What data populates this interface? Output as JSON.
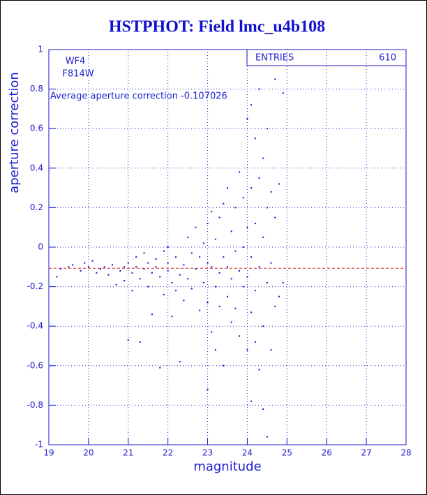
{
  "chart_data": {
    "type": "scatter",
    "title": "HSTPHOT: Field lmc_u4b108",
    "x_label": "magnitude",
    "y_label": "aperture correction",
    "annotations": [
      "WF4",
      "F814W"
    ],
    "average_label": "Average aperture correction -0.107026",
    "average": -0.107026,
    "average_color": "#e02020",
    "stats": {
      "label": "ENTRIES",
      "value": 610
    },
    "xlim": [
      19,
      28
    ],
    "xticks": [
      19,
      20,
      21,
      22,
      23,
      24,
      25,
      26,
      27,
      28
    ],
    "ylim": [
      -1,
      1
    ],
    "yticks": [
      -1,
      -0.8,
      -0.6,
      -0.4,
      -0.2,
      0,
      0.2,
      0.4,
      0.6,
      0.8,
      1
    ],
    "grid": true,
    "color": "#1010d0",
    "x": [
      19.2,
      19.3,
      19.5,
      19.6,
      19.8,
      19.9,
      20.0,
      20.1,
      20.2,
      20.3,
      20.4,
      20.5,
      20.6,
      20.7,
      20.8,
      20.9,
      20.9,
      21.0,
      21.0,
      21.1,
      21.1,
      21.2,
      21.2,
      21.3,
      21.3,
      21.4,
      21.4,
      21.5,
      21.5,
      21.6,
      21.6,
      21.7,
      21.7,
      21.8,
      21.8,
      21.9,
      21.9,
      22.0,
      22.0,
      22.0,
      22.1,
      22.1,
      22.2,
      22.2,
      22.3,
      22.3,
      22.4,
      22.4,
      22.5,
      22.5,
      22.6,
      22.6,
      22.7,
      22.7,
      22.8,
      22.8,
      22.9,
      22.9,
      23.0,
      23.0,
      23.0,
      23.0,
      23.1,
      23.1,
      23.1,
      23.2,
      23.2,
      23.2,
      23.3,
      23.3,
      23.3,
      23.4,
      23.4,
      23.4,
      23.5,
      23.5,
      23.5,
      23.6,
      23.6,
      23.6,
      23.7,
      23.7,
      23.7,
      23.8,
      23.8,
      23.8,
      23.9,
      23.9,
      23.9,
      24.0,
      24.0,
      24.0,
      24.0,
      24.1,
      24.1,
      24.1,
      24.1,
      24.1,
      24.2,
      24.2,
      24.2,
      24.2,
      24.3,
      24.3,
      24.3,
      24.3,
      24.4,
      24.4,
      24.4,
      24.4,
      24.5,
      24.5,
      24.5,
      24.5,
      24.6,
      24.6,
      24.6,
      24.7,
      24.7,
      24.7,
      24.8,
      24.8,
      24.9,
      24.9
    ],
    "values": [
      -0.15,
      -0.11,
      -0.1,
      -0.09,
      -0.12,
      -0.08,
      -0.1,
      -0.07,
      -0.13,
      -0.11,
      -0.1,
      -0.14,
      -0.09,
      -0.19,
      -0.12,
      -0.1,
      -0.17,
      -0.08,
      -0.47,
      -0.13,
      -0.22,
      -0.1,
      -0.05,
      -0.16,
      -0.48,
      -0.11,
      -0.03,
      -0.2,
      -0.08,
      -0.13,
      -0.34,
      -0.06,
      -0.1,
      -0.61,
      -0.15,
      -0.02,
      -0.24,
      -0.08,
      -0.12,
      0.0,
      -0.18,
      -0.35,
      -0.05,
      -0.22,
      -0.14,
      -0.58,
      -0.09,
      -0.27,
      0.05,
      -0.16,
      -0.03,
      -0.21,
      0.1,
      -0.11,
      -0.05,
      -0.32,
      0.02,
      -0.18,
      -0.72,
      0.12,
      -0.08,
      -0.28,
      0.18,
      -0.1,
      -0.43,
      0.04,
      -0.2,
      -0.52,
      0.15,
      -0.13,
      -0.3,
      0.22,
      -0.05,
      -0.6,
      0.3,
      -0.1,
      -0.25,
      0.08,
      -0.16,
      -0.38,
      0.2,
      -0.02,
      -0.31,
      0.38,
      -0.12,
      -0.45,
      0.25,
      0.0,
      -0.2,
      0.65,
      0.1,
      -0.15,
      -0.52,
      0.72,
      0.3,
      -0.05,
      -0.33,
      -0.78,
      0.55,
      0.12,
      -0.22,
      -0.48,
      0.8,
      0.35,
      -0.1,
      -0.62,
      0.45,
      0.05,
      -0.4,
      -0.82,
      0.6,
      0.2,
      -0.18,
      -0.96,
      0.28,
      -0.08,
      -0.52,
      0.85,
      0.15,
      -0.3,
      0.32,
      -0.25,
      0.78,
      -0.18
    ]
  }
}
